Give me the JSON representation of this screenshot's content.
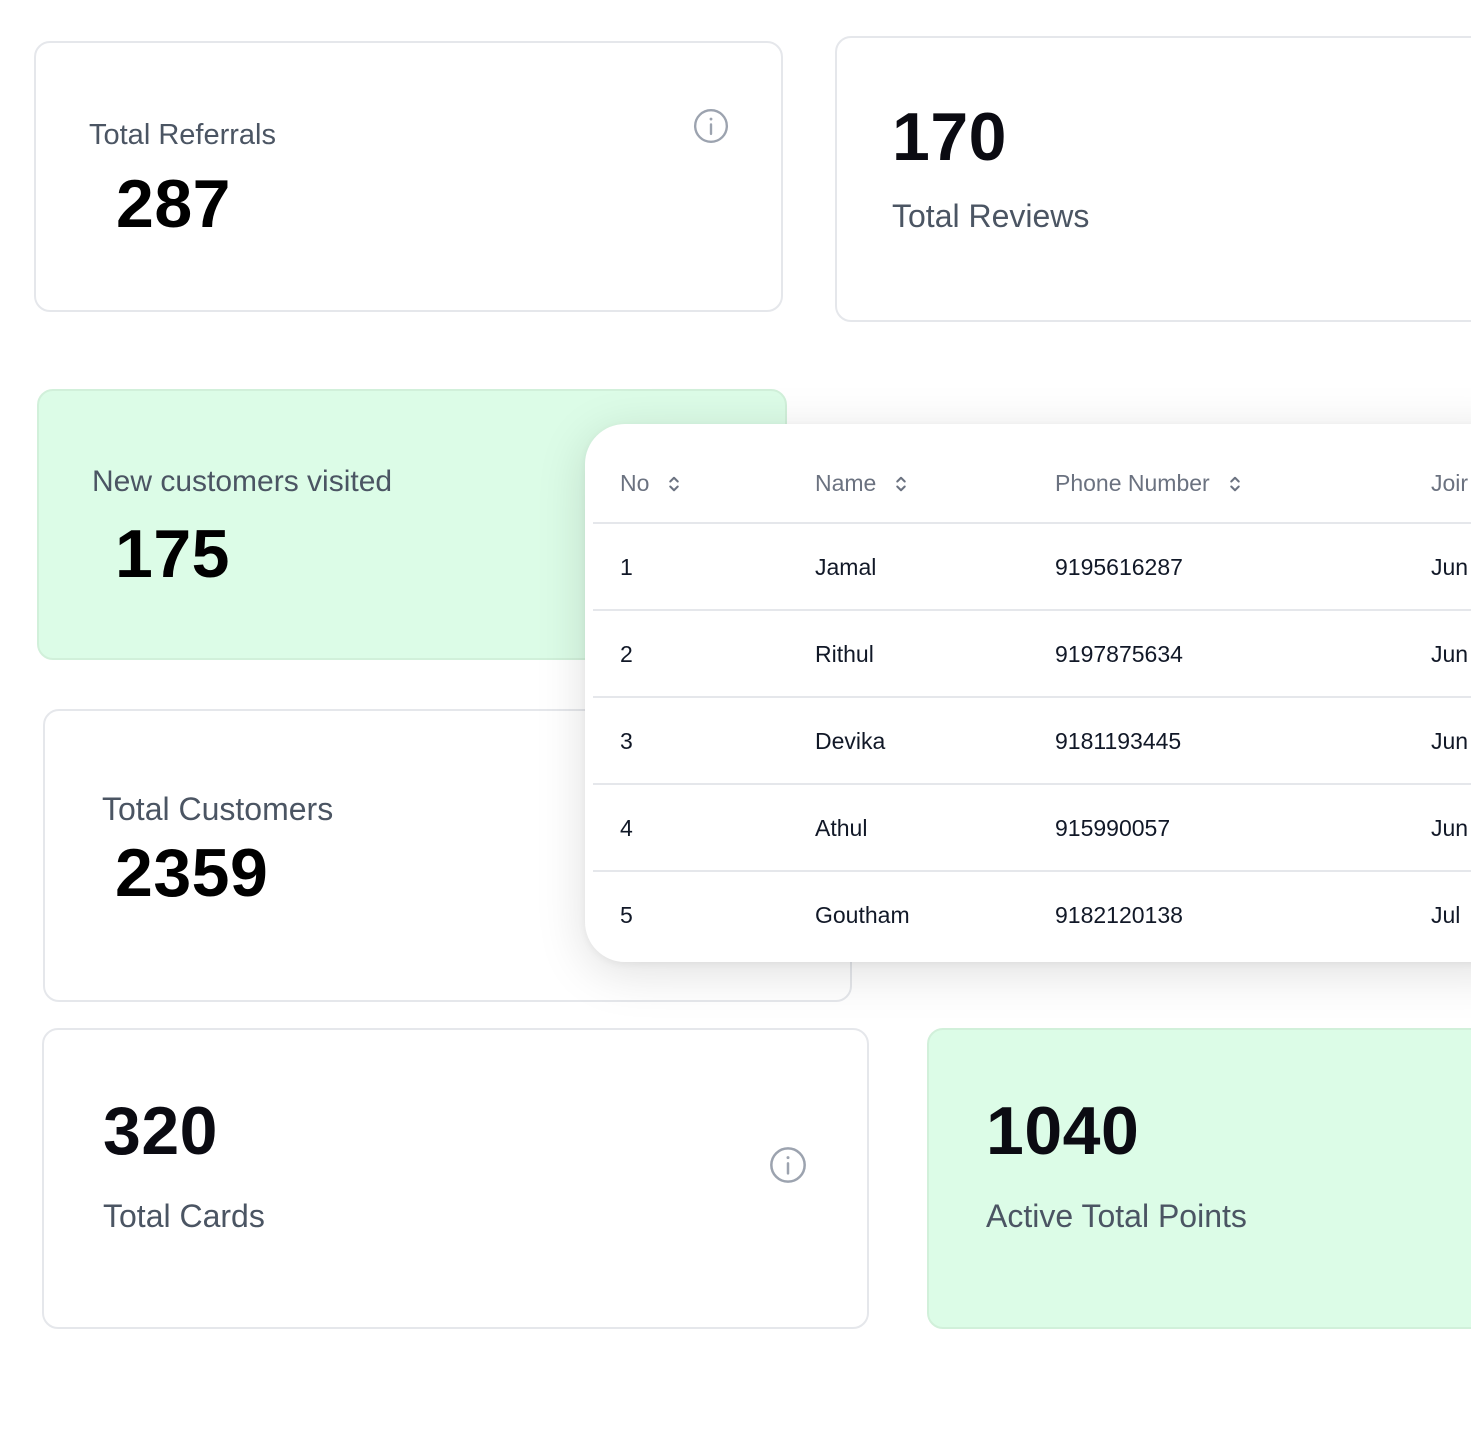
{
  "cards": {
    "total_referrals": {
      "label": "Total Referrals",
      "value": "287"
    },
    "total_reviews": {
      "label": "Total Reviews",
      "value": "170"
    },
    "new_customers": {
      "label": "New customers visited",
      "value": "175"
    },
    "total_customers": {
      "label": "Total Customers",
      "value": "2359"
    },
    "total_cards": {
      "label": "Total Cards",
      "value": "320"
    },
    "active_points": {
      "label": "Active Total Points",
      "value": "1040"
    }
  },
  "table": {
    "columns": [
      "No",
      "Name",
      "Phone Number",
      "Joir"
    ],
    "rows": [
      {
        "no": "1",
        "name": "Jamal",
        "phone": "9195616287",
        "joined": "Jun"
      },
      {
        "no": "2",
        "name": "Rithul",
        "phone": "9197875634",
        "joined": "Jun"
      },
      {
        "no": "3",
        "name": "Devika",
        "phone": "9181193445",
        "joined": "Jun"
      },
      {
        "no": "4",
        "name": "Athul",
        "phone": "915990057",
        "joined": "Jun"
      },
      {
        "no": "5",
        "name": "Goutham",
        "phone": "9182120138",
        "joined": "Jul"
      }
    ]
  },
  "colors": {
    "accent_green_bg": "#dcfce7",
    "card_border": "#e5e7eb",
    "label_text": "#4b5563",
    "value_text": "#0b0b12"
  },
  "icons": {
    "info": "info-circle-icon",
    "sort": "sort-chevrons-icon"
  }
}
